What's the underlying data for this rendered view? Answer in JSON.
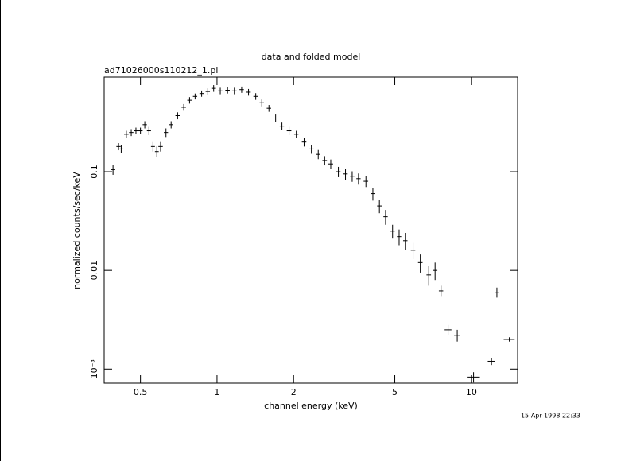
{
  "chart_data": {
    "type": "scatter",
    "title": "data and folded model",
    "subtitle": "ad71026000s110212_1.pi",
    "x_label": "channel energy (keV)",
    "y_label": "normalized counts/sec/keV",
    "timestamp": "15-Apr-1998 22:33",
    "log_x": true,
    "log_y": true,
    "color": "#000000",
    "xlim": [
      0.36,
      15.2
    ],
    "ylim": [
      0.00072,
      0.91
    ],
    "xticks": [
      0.5,
      1,
      2,
      5,
      10
    ],
    "yticks": [
      {
        "value": 0.001,
        "label": "10⁻³"
      },
      0.01,
      0.1
    ],
    "x": [
      0.39,
      0.41,
      0.42,
      0.44,
      0.46,
      0.48,
      0.5,
      0.52,
      0.54,
      0.56,
      0.58,
      0.6,
      0.63,
      0.66,
      0.7,
      0.74,
      0.78,
      0.82,
      0.87,
      0.92,
      0.97,
      1.03,
      1.1,
      1.17,
      1.25,
      1.33,
      1.42,
      1.5,
      1.6,
      1.7,
      1.8,
      1.92,
      2.05,
      2.2,
      2.35,
      2.5,
      2.65,
      2.8,
      3.0,
      3.2,
      3.4,
      3.6,
      3.85,
      4.1,
      4.35,
      4.6,
      4.9,
      5.2,
      5.5,
      5.9,
      6.3,
      6.8,
      7.2,
      7.6,
      8.1,
      8.8,
      10.2,
      12.0,
      12.6,
      14.1
    ],
    "x_errors": [
      0.008,
      0.008,
      0.008,
      0.009,
      0.009,
      0.009,
      0.01,
      0.01,
      0.01,
      0.01,
      0.01,
      0.012,
      0.012,
      0.013,
      0.014,
      0.015,
      0.016,
      0.016,
      0.017,
      0.018,
      0.02,
      0.02,
      0.022,
      0.024,
      0.025,
      0.027,
      0.03,
      0.03,
      0.032,
      0.034,
      0.036,
      0.04,
      0.04,
      0.045,
      0.05,
      0.05,
      0.055,
      0.06,
      0.06,
      0.065,
      0.07,
      0.07,
      0.08,
      0.08,
      0.09,
      0.09,
      0.1,
      0.1,
      0.11,
      0.12,
      0.13,
      0.14,
      0.15,
      0.15,
      0.25,
      0.25,
      0.6,
      0.4,
      0.2,
      0.7
    ],
    "values": [
      0.105,
      0.18,
      0.17,
      0.24,
      0.25,
      0.26,
      0.26,
      0.3,
      0.26,
      0.18,
      0.16,
      0.18,
      0.25,
      0.3,
      0.37,
      0.45,
      0.53,
      0.58,
      0.62,
      0.65,
      0.7,
      0.66,
      0.67,
      0.66,
      0.68,
      0.64,
      0.58,
      0.5,
      0.44,
      0.35,
      0.29,
      0.26,
      0.24,
      0.2,
      0.17,
      0.15,
      0.13,
      0.12,
      0.1,
      0.095,
      0.09,
      0.085,
      0.08,
      0.06,
      0.045,
      0.035,
      0.025,
      0.022,
      0.02,
      0.016,
      0.012,
      0.009,
      0.01,
      0.0062,
      0.0025,
      0.0022,
      0.00083,
      0.0012,
      0.006,
      0.002
    ],
    "y_errors": [
      0.012,
      0.015,
      0.015,
      0.02,
      0.02,
      0.02,
      0.02,
      0.025,
      0.025,
      0.02,
      0.02,
      0.02,
      0.025,
      0.025,
      0.03,
      0.035,
      0.04,
      0.04,
      0.045,
      0.05,
      0.055,
      0.05,
      0.05,
      0.05,
      0.05,
      0.05,
      0.045,
      0.04,
      0.035,
      0.03,
      0.025,
      0.025,
      0.02,
      0.02,
      0.018,
      0.016,
      0.014,
      0.013,
      0.012,
      0.012,
      0.011,
      0.011,
      0.01,
      0.009,
      0.007,
      0.006,
      0.004,
      0.004,
      0.004,
      0.003,
      0.0025,
      0.002,
      0.002,
      0.0008,
      0.0003,
      0.0003,
      0.0001,
      0.0001,
      0.0007,
      0.0001
    ]
  }
}
